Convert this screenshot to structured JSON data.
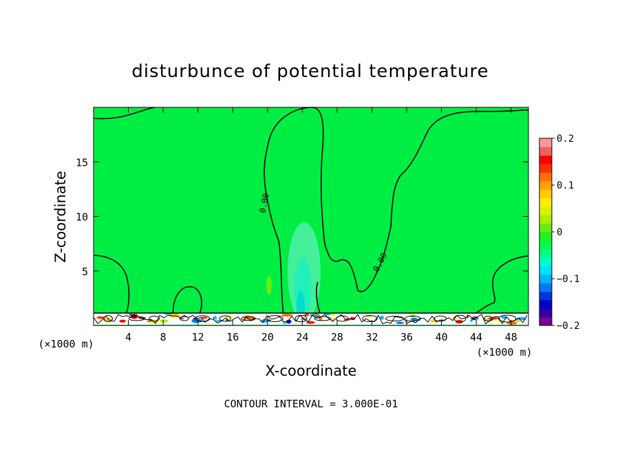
{
  "chart_data": {
    "type": "heatmap",
    "title": "disturbunce of potential temperature",
    "xlabel": "X-coordinate",
    "ylabel": "Z-coordinate",
    "x_unit": "(×1000 m)",
    "x_unit_right": "(×1000 m)",
    "xlim": [
      0,
      50
    ],
    "ylim": [
      0,
      20
    ],
    "x_ticks": [
      "4",
      "8",
      "12",
      "16",
      "20",
      "24",
      "28",
      "32",
      "36",
      "40",
      "44",
      "48"
    ],
    "y_ticks": [
      "5",
      "10",
      "15"
    ],
    "contour_label": "0.00",
    "colorbar": {
      "range": [
        -0.2,
        0.2
      ],
      "tick_labels": [
        "0.2",
        "0.1",
        "0",
        "−0.1",
        "−0.2"
      ],
      "colors": [
        "#7a0099",
        "#3300a0",
        "#0000c8",
        "#0033e0",
        "#0077ff",
        "#00b4ff",
        "#00e0ff",
        "#00ffcc",
        "#00ff88",
        "#00ff44",
        "#22ee22",
        "#66ee11",
        "#aaf000",
        "#ddf000",
        "#ffee00",
        "#ffcc00",
        "#ffa000",
        "#ff7000",
        "#ff3000",
        "#ff0000",
        "#f06060",
        "#ff9999"
      ]
    },
    "footer": "CONTOUR INTERVAL = 3.000E-01"
  },
  "colors": {
    "field": "#00ee44",
    "cool_mild": "#44f099",
    "cool_strong": "#00dcd0"
  }
}
